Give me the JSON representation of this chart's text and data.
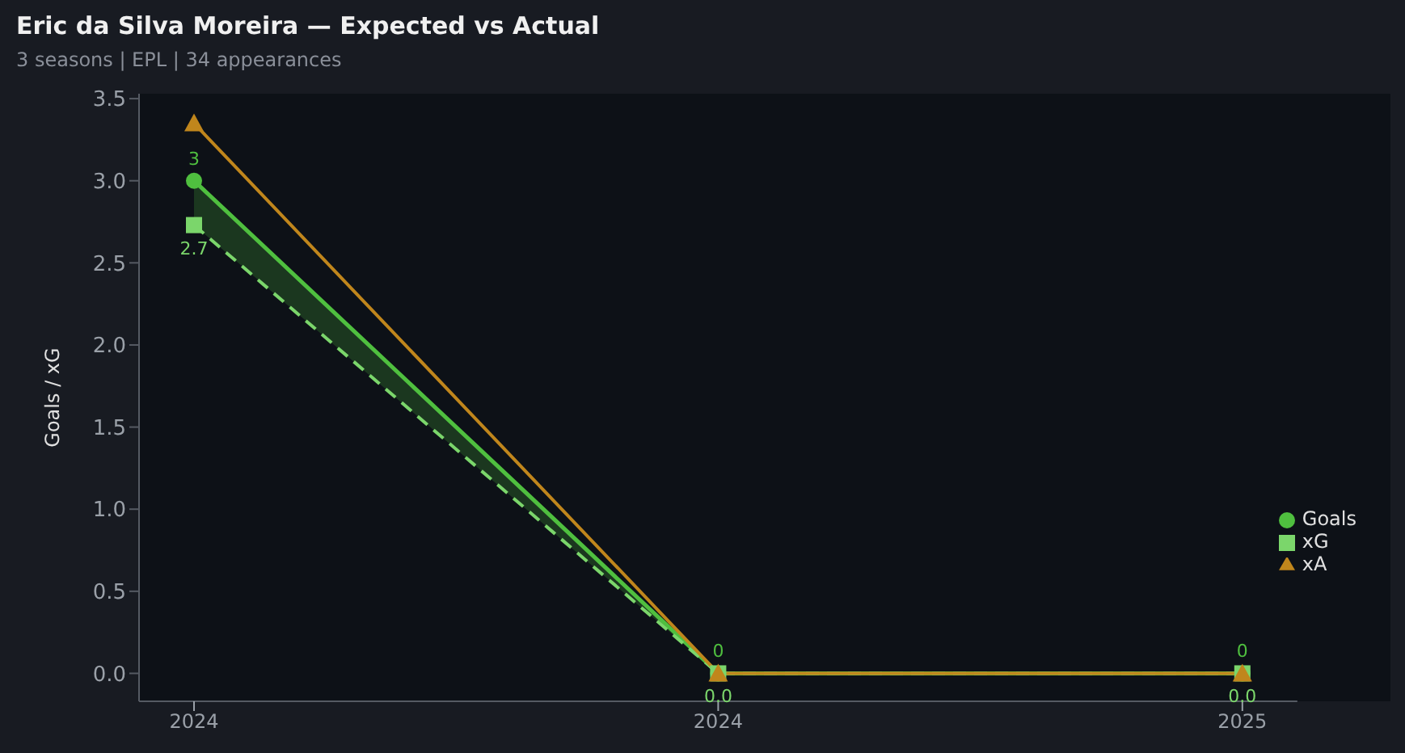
{
  "chart_data": {
    "type": "line",
    "title": "Eric da Silva Moreira — Expected vs Actual",
    "subtitle": "3 seasons | EPL | 34 appearances",
    "ylabel": "Goals / xG",
    "categories": [
      "2024",
      "2024",
      "2025"
    ],
    "series": [
      {
        "name": "Goals",
        "color": "#4fbf3f",
        "values": [
          3,
          0,
          0
        ],
        "marker": "circle",
        "line_style": "solid",
        "lower": [
          2.73,
          0,
          0
        ],
        "upper": [
          3,
          0,
          0
        ],
        "value_labels": [
          "3",
          "0",
          "0"
        ]
      },
      {
        "name": "xG",
        "color": "#7bd66b",
        "values": [
          2.73,
          0,
          0
        ],
        "marker": "square",
        "line_style": "dashed",
        "value_labels": [
          "2.7",
          "0.0",
          "0.0"
        ]
      },
      {
        "name": "xA",
        "color": "#c0861c",
        "values": [
          3.35,
          0,
          0
        ],
        "marker": "triangle",
        "line_style": "solid"
      }
    ],
    "ylim": [
      -0.17,
      3.53
    ],
    "yticks": [
      {
        "value": 0,
        "label": "0.0"
      },
      0.5,
      {
        "value": 1,
        "label": "1.0"
      },
      1.5,
      {
        "value": 2,
        "label": "2.0"
      },
      2.5,
      {
        "value": 3,
        "label": "3.0"
      },
      3.5
    ],
    "legend": "bottom right"
  }
}
